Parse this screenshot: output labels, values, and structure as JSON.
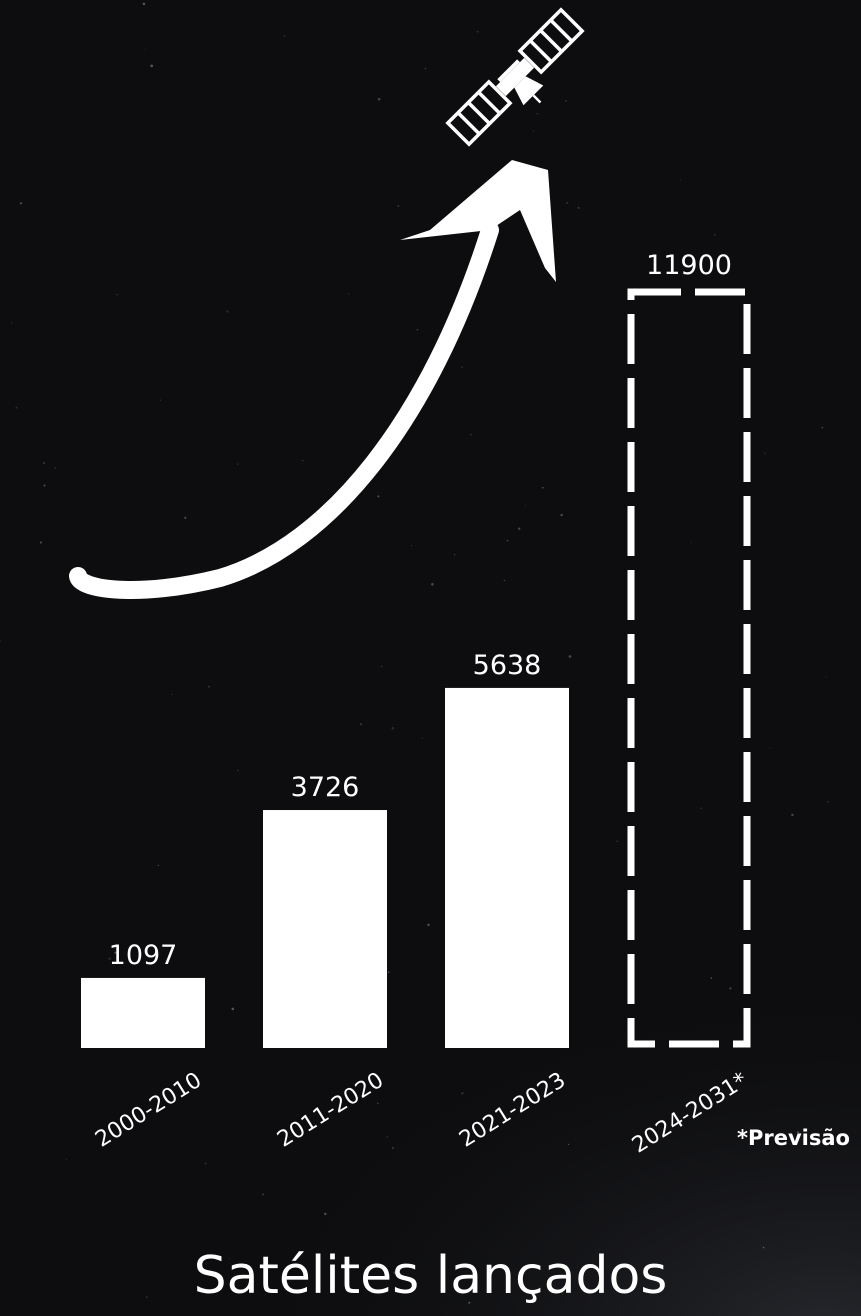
{
  "chart_data": {
    "type": "bar",
    "title": "Satélites lançados",
    "categories": [
      "2000-2010",
      "2011-2020",
      "2021-2023",
      "2024-2031*"
    ],
    "values": [
      1097,
      3726,
      5638,
      11900
    ],
    "value_labels": [
      "1097",
      "3726",
      "5638",
      "11900"
    ],
    "projected": [
      false,
      false,
      false,
      true
    ],
    "footnote": "*Previsão",
    "xlabel": "",
    "ylabel": "",
    "ylim": [
      0,
      11900
    ],
    "grid": false,
    "legend": "none"
  },
  "colors": {
    "background": "#0d0d0f",
    "bars": "#ffffff",
    "text": "#ffffff"
  },
  "icons": [
    "growth-arrow-icon",
    "satellite-icon"
  ]
}
